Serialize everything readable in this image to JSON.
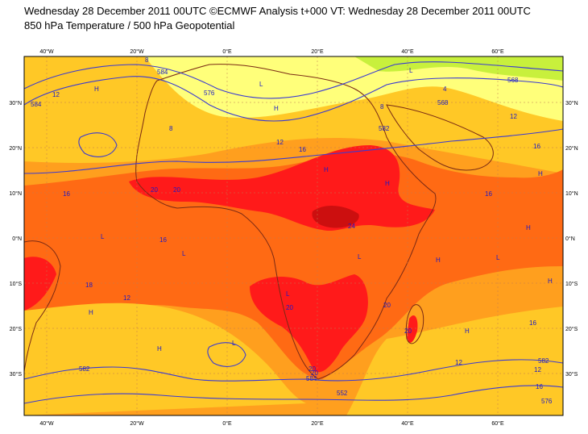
{
  "header": {
    "title_line1": "Wednesday 28 December 2011 00UTC ©ECMWF Analysis t+000 VT: Wednesday 28 December 2011 00UTC",
    "title_line2": "850 hPa Temperature / 500 hPa Geopotential"
  },
  "axes": {
    "lon_ticks": [
      "40°W",
      "20°W",
      "0°E",
      "20°E",
      "40°E",
      "60°E"
    ],
    "lat_ticks": [
      "30°N",
      "20°N",
      "10°N",
      "0°N",
      "10°S",
      "20°S",
      "30°S"
    ]
  },
  "temperature_labels": [
    "12",
    "16",
    "16",
    "20",
    "24",
    "20",
    "20",
    "16",
    "20",
    "12",
    "16",
    "18",
    "20",
    "20",
    "16",
    "12",
    "8",
    "4",
    "8",
    "12",
    "12",
    "16",
    "20",
    "8",
    "12",
    "16"
  ],
  "geopotential_labels": [
    "568",
    "576",
    "582",
    "584",
    "568",
    "582",
    "584",
    "582",
    "576",
    "552",
    "584"
  ],
  "pressure_markers": [
    "H",
    "H",
    "H",
    "H",
    "H",
    "H",
    "H",
    "H",
    "H",
    "H",
    "H",
    "L",
    "L",
    "L",
    "L",
    "L",
    "L",
    "L",
    "L"
  ],
  "colors": {
    "very_hot": "#ff1a1a",
    "hot_core": "#cc0f0f",
    "hot": "#ff6a14",
    "warm": "#ff9f1e",
    "mild": "#ffc826",
    "cool": "#ffff7a",
    "cold": "#c8f03c",
    "coast": "#7a2a14",
    "contour": "#3a3ad2",
    "grid": "#c07a50"
  }
}
